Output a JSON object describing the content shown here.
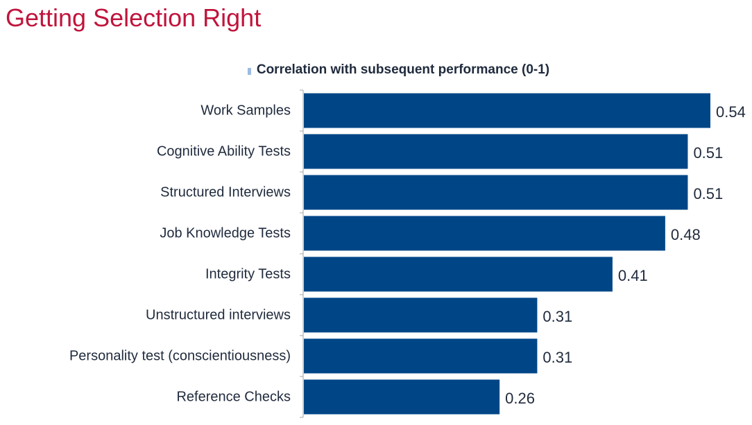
{
  "slide": {
    "title": "Getting Selection Right"
  },
  "colors": {
    "title": "#c0143c",
    "bar": "#004687",
    "text": "#1f2a3c",
    "axis": "#a6a6a6"
  },
  "chart_data": {
    "type": "bar",
    "orientation": "horizontal",
    "title": "Correlation with subsequent performance (0-1)",
    "categories": [
      "Work Samples",
      "Cognitive Ability Tests",
      "Structured Interviews",
      "Job Knowledge Tests",
      "Integrity Tests",
      "Unstructured interviews",
      "Personality test (conscientiousness)",
      "Reference Checks"
    ],
    "values": [
      0.54,
      0.51,
      0.51,
      0.48,
      0.41,
      0.31,
      0.31,
      0.26
    ],
    "value_labels": [
      "0.54",
      "0.51",
      "0.51",
      "0.48",
      "0.41",
      "0.31",
      "0.31",
      "0.26"
    ],
    "xlim": [
      0,
      0.54
    ],
    "grid": false,
    "legend": "none"
  }
}
